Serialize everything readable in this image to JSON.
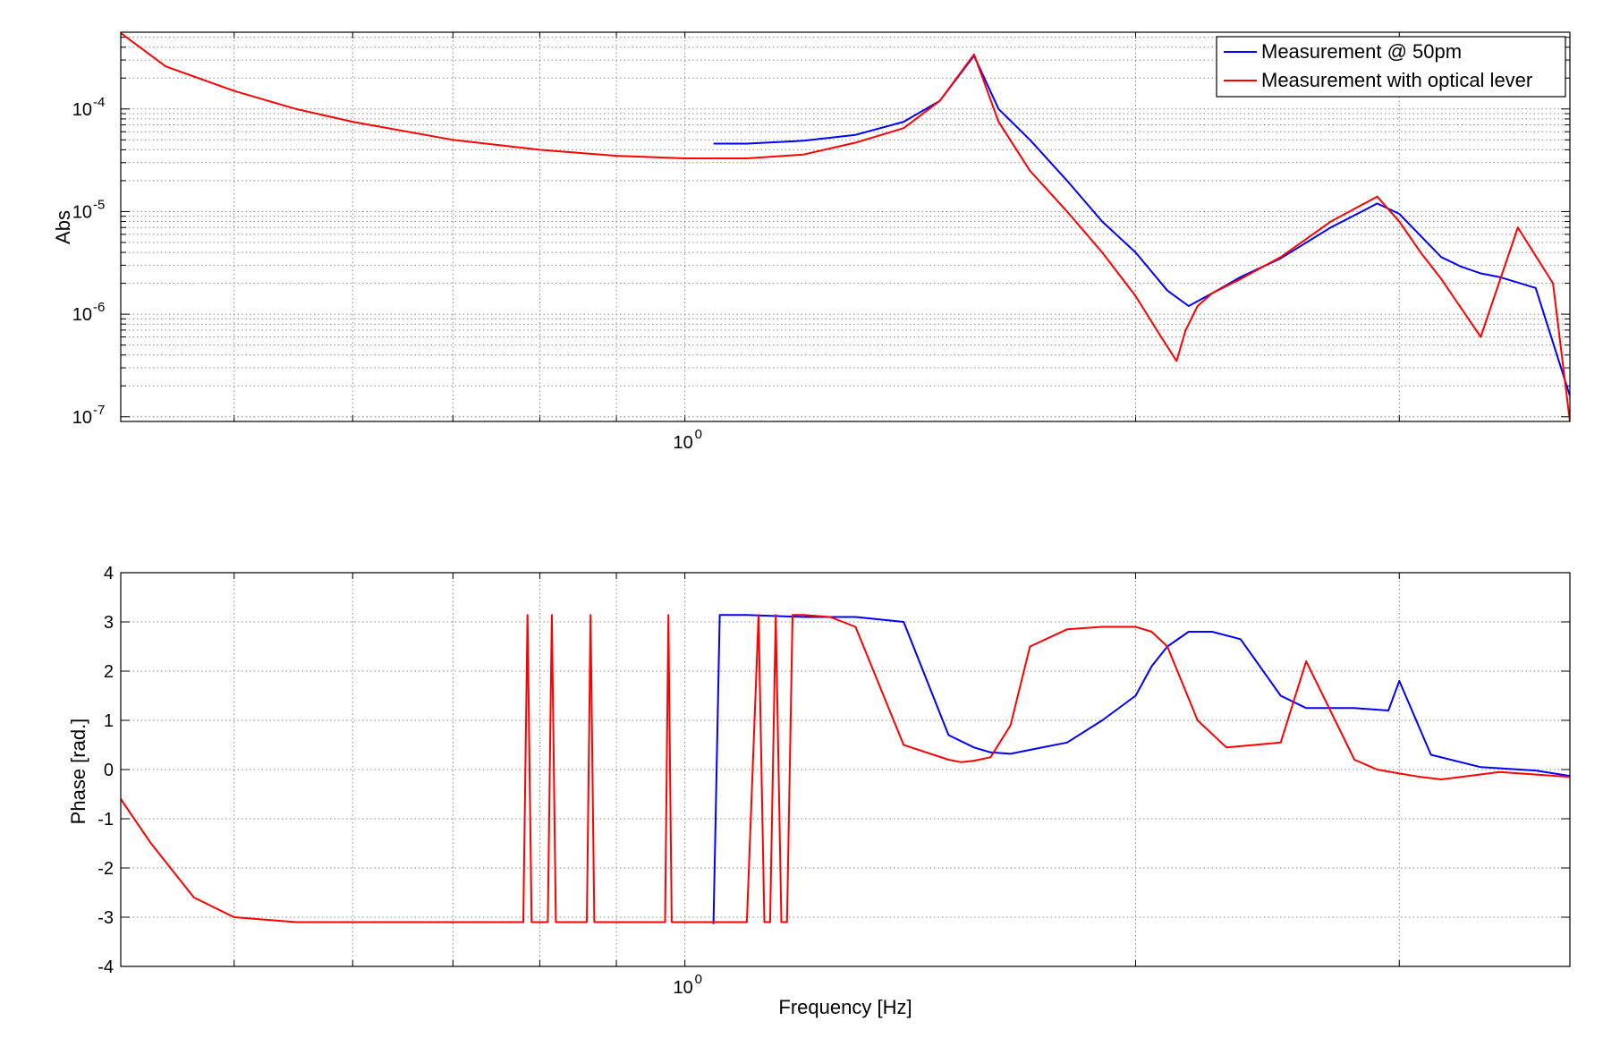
{
  "chart_data": [
    {
      "type": "line",
      "xscale": "log",
      "yscale": "log",
      "xlim": [
        0.42,
        3.9
      ],
      "ylim": [
        9e-08,
        0.00056
      ],
      "grid": true,
      "xlabel": "",
      "ylabel": "Abs",
      "x_ticks": [
        {
          "value": 1,
          "label": "10",
          "exp": "0"
        }
      ],
      "y_ticks": [
        {
          "value": 1e-07,
          "label": "10",
          "exp": "-7"
        },
        {
          "value": 1e-06,
          "label": "10",
          "exp": "-6"
        },
        {
          "value": 1e-05,
          "label": "10",
          "exp": "-5"
        },
        {
          "value": 0.0001,
          "label": "10",
          "exp": "-4"
        }
      ],
      "legend": {
        "position": "top-right",
        "entries": [
          {
            "name": "Measurement @ 50pm",
            "color": "#0000ff"
          },
          {
            "name": "Measurement with optical lever",
            "color": "#ff0000"
          }
        ]
      },
      "series": [
        {
          "name": "Measurement @ 50pm",
          "color": "#0000ff",
          "x": [
            1.045,
            1.1,
            1.2,
            1.3,
            1.4,
            1.48,
            1.56,
            1.62,
            1.7,
            1.8,
            1.9,
            2.0,
            2.1,
            2.17,
            2.25,
            2.35,
            2.5,
            2.7,
            2.9,
            3.0,
            3.1,
            3.2,
            3.3,
            3.4,
            3.5,
            3.7,
            3.9
          ],
          "y": [
            4.6e-05,
            4.6e-05,
            4.9e-05,
            5.6e-05,
            7.5e-05,
            0.00012,
            0.00033,
            0.0001,
            5e-05,
            2e-05,
            8e-06,
            4e-06,
            1.7e-06,
            1.2e-06,
            1.6e-06,
            2.3e-06,
            3.5e-06,
            7e-06,
            1.2e-05,
            9.5e-06,
            5.8e-06,
            3.6e-06,
            2.9e-06,
            2.5e-06,
            2.3e-06,
            1.8e-06,
            1.6e-07
          ]
        },
        {
          "name": "Measurement with optical lever",
          "color": "#ff0000",
          "x": [
            0.42,
            0.45,
            0.5,
            0.55,
            0.6,
            0.7,
            0.8,
            0.9,
            1.0,
            1.1,
            1.2,
            1.3,
            1.4,
            1.48,
            1.56,
            1.62,
            1.7,
            1.8,
            1.9,
            2.0,
            2.08,
            2.13,
            2.16,
            2.2,
            2.25,
            2.35,
            2.5,
            2.7,
            2.9,
            3.0,
            3.1,
            3.2,
            3.4,
            3.6,
            3.8,
            3.9
          ],
          "y": [
            0.00055,
            0.00026,
            0.00015,
            0.0001,
            7.5e-05,
            5e-05,
            4e-05,
            3.5e-05,
            3.3e-05,
            3.3e-05,
            3.6e-05,
            4.7e-05,
            6.5e-05,
            0.00012,
            0.00034,
            7.5e-05,
            2.5e-05,
            1e-05,
            4e-06,
            1.5e-06,
            6e-07,
            3.5e-07,
            7e-07,
            1.2e-06,
            1.6e-06,
            2.2e-06,
            3.6e-06,
            8e-06,
            1.4e-05,
            8e-06,
            4e-06,
            2.2e-06,
            6e-07,
            7e-06,
            2e-06,
            9e-08
          ]
        }
      ]
    },
    {
      "type": "line",
      "xscale": "log",
      "yscale": "linear",
      "xlim": [
        0.42,
        3.9
      ],
      "ylim": [
        -4,
        4
      ],
      "grid": true,
      "xlabel": "Frequency [Hz]",
      "ylabel": "Phase [rad.]",
      "x_ticks": [
        {
          "value": 1,
          "label": "10",
          "exp": "0"
        }
      ],
      "y_ticks": [
        {
          "value": -4,
          "label": "-4"
        },
        {
          "value": -3,
          "label": "-3"
        },
        {
          "value": -2,
          "label": "-2"
        },
        {
          "value": -1,
          "label": "-1"
        },
        {
          "value": 0,
          "label": "0"
        },
        {
          "value": 1,
          "label": "1"
        },
        {
          "value": 2,
          "label": "2"
        },
        {
          "value": 3,
          "label": "3"
        },
        {
          "value": 4,
          "label": "4"
        }
      ],
      "series": [
        {
          "name": "Measurement @ 50pm",
          "color": "#0000ff",
          "x": [
            1.045,
            1.055,
            1.1,
            1.2,
            1.3,
            1.4,
            1.5,
            1.56,
            1.6,
            1.65,
            1.7,
            1.8,
            1.9,
            2.0,
            2.05,
            2.1,
            2.17,
            2.25,
            2.35,
            2.5,
            2.6,
            2.8,
            2.95,
            3.0,
            3.15,
            3.4,
            3.7,
            3.9
          ],
          "y": [
            -3.14,
            3.14,
            3.14,
            3.1,
            3.1,
            3.0,
            0.7,
            0.45,
            0.35,
            0.32,
            0.4,
            0.55,
            1.0,
            1.5,
            2.1,
            2.5,
            2.8,
            2.8,
            2.65,
            1.5,
            1.25,
            1.25,
            1.2,
            1.8,
            0.3,
            0.05,
            -0.02,
            -0.13
          ]
        },
        {
          "name": "Measurement with optical lever",
          "color": "#ff0000",
          "x": [
            0.42,
            0.44,
            0.47,
            0.5,
            0.55,
            0.6,
            0.7,
            0.78,
            0.785,
            0.79,
            0.8,
            0.81,
            0.815,
            0.82,
            0.86,
            0.865,
            0.87,
            0.88,
            0.89,
            0.895,
            0.9,
            0.97,
            0.975,
            0.98,
            0.99,
            1.0,
            1.01,
            1.1,
            1.12,
            1.13,
            1.14,
            1.15,
            1.16,
            1.17,
            1.18,
            1.19,
            1.2,
            1.25,
            1.3,
            1.4,
            1.5,
            1.53,
            1.56,
            1.6,
            1.65,
            1.7,
            1.8,
            1.9,
            2.0,
            2.05,
            2.1,
            2.2,
            2.3,
            2.5,
            2.6,
            2.8,
            2.9,
            3.0,
            3.1,
            3.2,
            3.5,
            3.9
          ],
          "y": [
            -0.6,
            -1.5,
            -2.6,
            -3.0,
            -3.1,
            -3.1,
            -3.1,
            -3.1,
            3.14,
            -3.1,
            -3.1,
            -3.1,
            3.14,
            -3.1,
            -3.1,
            3.14,
            -3.1,
            -3.1,
            -3.1,
            -3.1,
            -3.1,
            -3.1,
            3.14,
            -3.1,
            -3.1,
            -3.1,
            -3.1,
            -3.1,
            3.14,
            -3.1,
            -3.1,
            3.14,
            -3.1,
            -3.1,
            3.14,
            3.14,
            3.14,
            3.1,
            2.9,
            0.5,
            0.2,
            0.15,
            0.18,
            0.25,
            0.9,
            2.5,
            2.85,
            2.9,
            2.9,
            2.8,
            2.5,
            1.0,
            0.45,
            0.55,
            2.2,
            0.2,
            0.0,
            -0.08,
            -0.15,
            -0.2,
            -0.05,
            -0.15
          ]
        }
      ]
    }
  ]
}
